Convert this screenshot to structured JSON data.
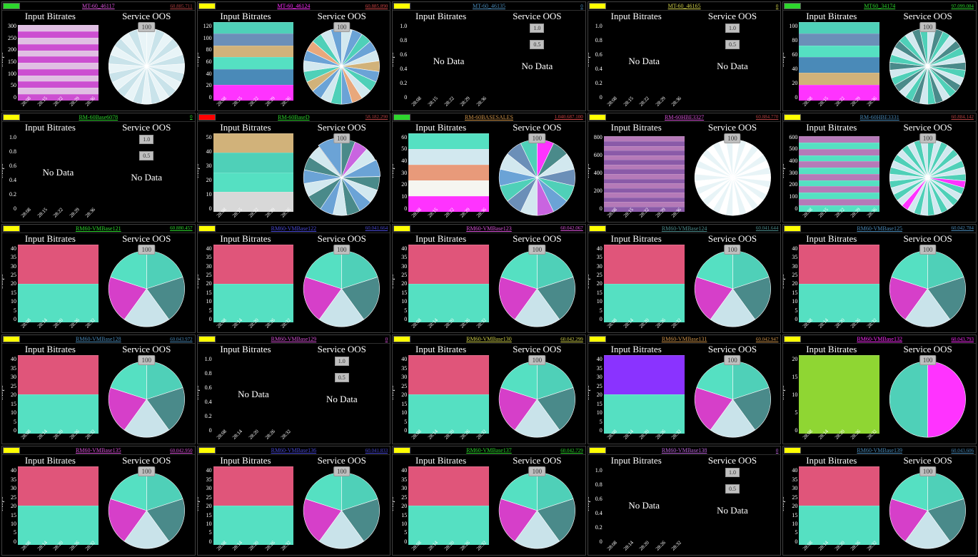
{
  "labels": {
    "input_bitrates": "Input Bitrates",
    "service_oos": "Service OOS",
    "mbps": "Mbps",
    "nodata": "No Data",
    "pie_badge": "100",
    "scale_hi": "1.0",
    "scale_lo": "0.5"
  },
  "status_colors": {
    "green": "#2dd62d",
    "yellow": "#ffff00",
    "red": "#ff0000"
  },
  "x_ticks_default": [
    "28:08",
    "28:15",
    "28:22",
    "28:29",
    "28:36"
  ],
  "x_ticks_alt": [
    "28:08",
    "28:14",
    "28:20",
    "28:26",
    "28:32"
  ],
  "nodata_y_ticks": [
    "1.0",
    "0.8",
    "0.6",
    "0.4",
    "0.2",
    "0"
  ],
  "vm_pie": {
    "slices": [
      20,
      20,
      20,
      20,
      20
    ],
    "colors": [
      "#4fd0b8",
      "#4a8a8a",
      "#c9e3ea",
      "#d63fc9",
      "#55e0c2"
    ]
  },
  "panels": [
    {
      "status": "green",
      "title": "MT-60_46117",
      "title_color": "#d852d8",
      "meta": "60.885.711",
      "meta_color": "#b34141",
      "bitrate": {
        "type": "bars",
        "y_ticks": [
          "300",
          "250",
          "200",
          "150",
          "100",
          "50",
          "0"
        ],
        "bar_colors": [
          "#cc4fd1",
          "#e0bfe3",
          "#cc4fd1",
          "#e0bfe3",
          "#cc4fd1",
          "#e0bfe3",
          "#cc4fd1",
          "#e0bfe3",
          "#cc4fd1",
          "#e0bfe3",
          "#cc4fd1",
          "#e0bfe3"
        ],
        "bar_heights": [
          8,
          8,
          8,
          8,
          8,
          8,
          8,
          8,
          8,
          8,
          8,
          8
        ]
      },
      "oos": {
        "type": "pie",
        "slices": [
          4,
          4,
          4,
          4,
          4,
          4,
          4,
          4,
          4,
          4,
          4,
          4,
          4,
          4,
          4,
          4,
          4,
          4,
          4,
          4,
          4,
          4,
          4,
          4,
          4
        ],
        "colors": [
          "#e8f4f7",
          "#c9e3ea",
          "#e8f4f7",
          "#c9e3ea",
          "#e8f4f7",
          "#c9e3ea",
          "#e8f4f7",
          "#c9e3ea",
          "#e8f4f7",
          "#c9e3ea",
          "#e8f4f7",
          "#c9e3ea",
          "#e8f4f7",
          "#c9e3ea",
          "#e8f4f7",
          "#c9e3ea",
          "#e8f4f7",
          "#c9e3ea",
          "#e8f4f7",
          "#c9e3ea",
          "#e8f4f7",
          "#c9e3ea",
          "#e8f4f7",
          "#c9e3ea",
          "#e8f4f7"
        ]
      }
    },
    {
      "status": "yellow",
      "title": "MT-60_46124",
      "title_color": "#ff2eff",
      "meta": "60.885.890",
      "meta_color": "#d04545",
      "bitrate": {
        "type": "bars",
        "y_ticks": [
          "120",
          "100",
          "80",
          "60",
          "40",
          "20",
          "0"
        ],
        "bar_colors": [
          "#ff33ff",
          "#4a8ab8",
          "#55e0c2",
          "#d1b27a",
          "#6b8fb8",
          "#4fd0b8"
        ],
        "bar_heights": [
          20,
          20,
          15,
          15,
          15,
          15
        ]
      },
      "oos": {
        "type": "pie",
        "slices": [
          6,
          6,
          6,
          6,
          6,
          6,
          6,
          6,
          6,
          6,
          6,
          6,
          6,
          6,
          6,
          6,
          6,
          6,
          6,
          6,
          6,
          6
        ],
        "colors": [
          "#d2e8ef",
          "#6ba3d6",
          "#4fd0b8",
          "#6ba3d6",
          "#d2e8ef",
          "#d1b27a",
          "#6ba3d6",
          "#4fd0b8",
          "#d2e8ef",
          "#e8a87c",
          "#6ba3d6",
          "#4fd0b8",
          "#d2e8ef",
          "#6ba3d6",
          "#d1b27a",
          "#4fd0b8",
          "#d2e8ef",
          "#6ba3d6",
          "#e8a87c",
          "#4fd0b8",
          "#d2e8ef",
          "#6ba3d6"
        ]
      }
    },
    {
      "status": "yellow",
      "title": "MT-60_46135",
      "title_color": "#4a8ab8",
      "meta": "0",
      "meta_color": "#4a8ab8",
      "bitrate": {
        "type": "nodata"
      },
      "oos": {
        "type": "nodata"
      }
    },
    {
      "status": "yellow",
      "title": "MT-60_46165",
      "title_color": "#d1d14a",
      "meta": "0",
      "meta_color": "#d1d14a",
      "bitrate": {
        "type": "nodata"
      },
      "oos": {
        "type": "nodata"
      }
    },
    {
      "status": "green",
      "title": "MT60_34174",
      "title_color": "#2dd62d",
      "meta": "97.099.084",
      "meta_color": "#2dd62d",
      "bitrate": {
        "type": "bars",
        "y_ticks": [
          "100",
          "80",
          "60",
          "40",
          "20",
          "0"
        ],
        "bar_colors": [
          "#ff33ff",
          "#d1b27a",
          "#4a8ab8",
          "#55e0c2",
          "#6b8fb8",
          "#4fd0b8"
        ],
        "bar_heights": [
          20,
          15,
          20,
          15,
          15,
          15
        ]
      },
      "oos": {
        "type": "pie",
        "slices": [
          7,
          7,
          7,
          7,
          7,
          7,
          7,
          7,
          7,
          7,
          7,
          7,
          7,
          7,
          7,
          7,
          7,
          7,
          7,
          7,
          7,
          7,
          7,
          7,
          7,
          7,
          7,
          7,
          7,
          7
        ],
        "colors": [
          "#d2e8ef",
          "#4a8a8a",
          "#4fd0b8",
          "#d2e8ef",
          "#4a8a8a",
          "#4fd0b8",
          "#d2e8ef",
          "#4a8a8a",
          "#4fd0b8",
          "#d2e8ef",
          "#4a8a8a",
          "#4fd0b8",
          "#d2e8ef",
          "#4a8a8a",
          "#4fd0b8",
          "#d2e8ef",
          "#4a8a8a",
          "#4fd0b8",
          "#d2e8ef",
          "#4a8a8a",
          "#4fd0b8",
          "#d2e8ef",
          "#4a8a8a",
          "#4fd0b8",
          "#d2e8ef",
          "#4a8a8a",
          "#4fd0b8",
          "#d2e8ef",
          "#4a8a8a",
          "#4fd0b8"
        ]
      }
    },
    {
      "status": "yellow",
      "title": "RM-60Base6078",
      "title_color": "#2dd62d",
      "meta": "0",
      "meta_color": "#2dd62d",
      "bitrate": {
        "type": "nodata"
      },
      "oos": {
        "type": "nodata"
      }
    },
    {
      "status": "red",
      "title": "RM-60BaseD",
      "title_color": "#2dd62d",
      "meta": "58.182.290",
      "meta_color": "#b34141",
      "bitrate": {
        "type": "bars",
        "y_ticks": [
          "50",
          "40",
          "30",
          "20",
          "10",
          "0"
        ],
        "bar_colors": [
          "#d8d8d8",
          "#55e0c2",
          "#4fd0b8",
          "#d1b27a"
        ],
        "bar_heights": [
          25,
          25,
          25,
          25
        ]
      },
      "oos": {
        "type": "pie",
        "slices": [
          8,
          8,
          8,
          10,
          8,
          8,
          8,
          8,
          8,
          8,
          10,
          8,
          8,
          8,
          8,
          14
        ],
        "colors": [
          "#4a8a8a",
          "#c964e0",
          "#d2e8ef",
          "#6ba3d6",
          "#4a8a8a",
          "#d2e8ef",
          "#6ba3d6",
          "#4a8a8a",
          "#d2e8ef",
          "#6ba3d6",
          "#4a8a8a",
          "#d2e8ef",
          "#6ba3d6",
          "#4a8a8a",
          "#d2e8ef",
          "#6ba3d6"
        ],
        "explode": [
          0,
          0,
          0,
          0.1,
          0,
          0,
          0,
          0,
          0,
          0,
          0,
          0,
          0,
          0,
          0,
          0.2
        ]
      }
    },
    {
      "status": "green",
      "title": "RM-60BASESALES",
      "title_color": "#d1954a",
      "meta": "1.040.687.100",
      "meta_color": "#d04545",
      "bitrate": {
        "type": "bars",
        "y_ticks": [
          "60",
          "50",
          "40",
          "30",
          "20",
          "10",
          "0"
        ],
        "bar_colors": [
          "#ff33ff",
          "#f5f5f0",
          "#e89a7a",
          "#d2e8ef",
          "#55e0c2"
        ],
        "bar_heights": [
          20,
          20,
          20,
          20,
          20
        ]
      },
      "oos": {
        "type": "pie",
        "slices": [
          7,
          7,
          7,
          7,
          7,
          7,
          7,
          7,
          7,
          7,
          7,
          7,
          7,
          7
        ],
        "colors": [
          "#ff33ff",
          "#4a8a8a",
          "#d2e8ef",
          "#6b8fb8",
          "#4fd0b8",
          "#6ba3d6",
          "#c964e0",
          "#d2e8ef",
          "#6b8fb8",
          "#4fd0b8",
          "#6ba3d6",
          "#d2e8ef",
          "#6b8fb8",
          "#4fd0b8"
        ]
      }
    },
    {
      "status": "yellow",
      "title": "RM-60HBE3327",
      "title_color": "#d852d8",
      "meta": "60.884.770",
      "meta_color": "#b34141",
      "bitrate": {
        "type": "bars",
        "y_ticks": [
          "800",
          "600",
          "400",
          "200",
          "0"
        ],
        "bar_colors": [
          "#8a5aa8",
          "#b57ab8",
          "#8a5aa8",
          "#b57ab8",
          "#8a5aa8",
          "#b57ab8",
          "#8a5aa8",
          "#b57ab8",
          "#8a5aa8",
          "#b57ab8",
          "#8a5aa8",
          "#b57ab8",
          "#8a5aa8",
          "#b57ab8",
          "#8a5aa8",
          "#b57ab8"
        ],
        "bar_heights": [
          6,
          6,
          6,
          6,
          6,
          6,
          6,
          6,
          6,
          6,
          6,
          6,
          6,
          6,
          6,
          6
        ]
      },
      "oos": {
        "type": "pie",
        "slices": [
          3,
          3,
          3,
          3,
          3,
          3,
          3,
          3,
          3,
          3,
          3,
          3,
          3,
          3,
          3,
          3,
          3,
          3,
          3,
          3,
          3,
          3,
          3,
          3,
          3,
          3,
          3,
          3,
          3,
          3,
          3,
          3,
          3,
          3
        ],
        "colors": [
          "#ffffff",
          "#e8f4f7",
          "#ffffff",
          "#e8f4f7",
          "#ffffff",
          "#e8f4f7",
          "#ffffff",
          "#e8f4f7",
          "#ffffff",
          "#e8f4f7",
          "#ffffff",
          "#e8f4f7",
          "#ffffff",
          "#e8f4f7",
          "#ffffff",
          "#e8f4f7",
          "#ffffff",
          "#e8f4f7",
          "#ffffff",
          "#e8f4f7",
          "#ffffff",
          "#e8f4f7",
          "#ffffff",
          "#e8f4f7",
          "#ffffff",
          "#e8f4f7",
          "#ffffff",
          "#e8f4f7",
          "#ffffff",
          "#e8f4f7",
          "#ffffff",
          "#e8f4f7",
          "#ffffff",
          "#e8f4f7"
        ]
      }
    },
    {
      "status": "yellow",
      "title": "RM-60HBE3331",
      "title_color": "#4a8ab8",
      "meta": "60.884.142",
      "meta_color": "#b34141",
      "bitrate": {
        "type": "bars",
        "y_ticks": [
          "600",
          "500",
          "400",
          "300",
          "200",
          "100",
          "0"
        ],
        "bar_colors": [
          "#55e0c2",
          "#b57ab8",
          "#55e0c2",
          "#b57ab8",
          "#55e0c2",
          "#b57ab8",
          "#55e0c2",
          "#b57ab8",
          "#55e0c2",
          "#b57ab8",
          "#55e0c2",
          "#b57ab8"
        ],
        "bar_heights": [
          8,
          8,
          8,
          8,
          8,
          8,
          8,
          8,
          8,
          8,
          8,
          8
        ]
      },
      "oos": {
        "type": "pie",
        "slices": [
          3,
          3,
          3,
          3,
          3,
          3,
          3,
          3,
          3,
          3,
          3,
          3,
          3,
          3,
          3,
          3,
          3,
          3,
          3,
          3,
          3,
          3,
          3,
          3,
          3,
          3,
          3,
          3,
          3,
          3,
          3,
          3,
          3,
          3
        ],
        "colors": [
          "#4fd0b8",
          "#d2e8ef",
          "#4fd0b8",
          "#d2e8ef",
          "#4fd0b8",
          "#d2e8ef",
          "#4fd0b8",
          "#d2e8ef",
          "#4fd0b8",
          "#ff33ff",
          "#4fd0b8",
          "#d2e8ef",
          "#4fd0b8",
          "#d2e8ef",
          "#4fd0b8",
          "#d2e8ef",
          "#4fd0b8",
          "#d2e8ef",
          "#4fd0b8",
          "#d2e8ef",
          "#ff33ff",
          "#d2e8ef",
          "#4fd0b8",
          "#d2e8ef",
          "#4fd0b8",
          "#d2e8ef",
          "#4fd0b8",
          "#d2e8ef",
          "#4fd0b8",
          "#d2e8ef",
          "#4fd0b8",
          "#d2e8ef",
          "#4fd0b8",
          "#d2e8ef"
        ]
      }
    },
    {
      "status": "yellow",
      "title": "RM60-VMBase121",
      "title_color": "#2dd62d",
      "meta": "60.880.457",
      "meta_color": "#2dd62d",
      "bitrate": {
        "type": "vm"
      },
      "oos": {
        "type": "vm_pie"
      }
    },
    {
      "status": "yellow",
      "title": "RM60-VMBase122",
      "title_color": "#4a4ad6",
      "meta": "60.041.664",
      "meta_color": "#4a4ad6",
      "bitrate": {
        "type": "vm"
      },
      "oos": {
        "type": "vm_pie"
      }
    },
    {
      "status": "yellow",
      "title": "RM60-VMBase123",
      "title_color": "#d852d8",
      "meta": "60.042.067",
      "meta_color": "#d852d8",
      "bitrate": {
        "type": "vm"
      },
      "oos": {
        "type": "vm_pie"
      }
    },
    {
      "status": "yellow",
      "title": "RM60-VMBase124",
      "title_color": "#4a8a8a",
      "meta": "60.041.644",
      "meta_color": "#4a8a8a",
      "bitrate": {
        "type": "vm"
      },
      "oos": {
        "type": "vm_pie"
      }
    },
    {
      "status": "yellow",
      "title": "RM60-VMBase125",
      "title_color": "#4a8ab8",
      "meta": "60.042.784",
      "meta_color": "#4a8ab8",
      "bitrate": {
        "type": "vm"
      },
      "oos": {
        "type": "vm_pie"
      }
    },
    {
      "status": "yellow",
      "title": "RM60-VMBase128",
      "title_color": "#4a8ab8",
      "meta": "60.043.972",
      "meta_color": "#4a8ab8",
      "bitrate": {
        "type": "vm"
      },
      "oos": {
        "type": "vm_pie"
      }
    },
    {
      "status": "yellow",
      "title": "RM60-VMBase129",
      "title_color": "#d852d8",
      "meta": "0",
      "meta_color": "#d852d8",
      "bitrate": {
        "type": "nodata"
      },
      "oos": {
        "type": "nodata"
      }
    },
    {
      "status": "yellow",
      "title": "RM60-VMBase130",
      "title_color": "#d1d14a",
      "meta": "60.042.299",
      "meta_color": "#d1d14a",
      "bitrate": {
        "type": "vm"
      },
      "oos": {
        "type": "vm_pie"
      }
    },
    {
      "status": "yellow",
      "title": "RM60-VMBase131",
      "title_color": "#d1954a",
      "meta": "60.042.947",
      "meta_color": "#d1954a",
      "bitrate": {
        "type": "bars",
        "y_ticks": [
          "40",
          "35",
          "30",
          "25",
          "20",
          "15",
          "10",
          "5",
          "0"
        ],
        "bar_colors": [
          "#55e0c2",
          "#8a33ff"
        ],
        "bar_heights": [
          50,
          50
        ]
      },
      "oos": {
        "type": "vm_pie"
      }
    },
    {
      "status": "yellow",
      "title": "RM60-VMBase132",
      "title_color": "#ff2eff",
      "meta": "60.043.793",
      "meta_color": "#ff2eff",
      "bitrate": {
        "type": "bars",
        "y_ticks": [
          "20",
          "15",
          "10",
          "5",
          "0"
        ],
        "bar_colors": [
          "#8fd633"
        ],
        "bar_heights": [
          100
        ]
      },
      "oos": {
        "type": "pie",
        "slices": [
          50,
          50
        ],
        "colors": [
          "#ff33ff",
          "#4fd0b8"
        ]
      }
    },
    {
      "status": "yellow",
      "title": "RM60-VMBase135",
      "title_color": "#d852d8",
      "meta": "60.042.950",
      "meta_color": "#d852d8",
      "bitrate": {
        "type": "vm"
      },
      "oos": {
        "type": "vm_pie"
      }
    },
    {
      "status": "yellow",
      "title": "RM60-VMBase136",
      "title_color": "#4a4ad6",
      "meta": "60.041.833",
      "meta_color": "#4a4ad6",
      "bitrate": {
        "type": "vm"
      },
      "oos": {
        "type": "vm_pie"
      }
    },
    {
      "status": "yellow",
      "title": "RM60-VMBase137",
      "title_color": "#2dd62d",
      "meta": "60.042.729",
      "meta_color": "#2dd62d",
      "bitrate": {
        "type": "vm"
      },
      "oos": {
        "type": "vm_pie"
      }
    },
    {
      "status": "yellow",
      "title": "RM60-VMBase138",
      "title_color": "#b864d8",
      "meta": "0",
      "meta_color": "#b864d8",
      "bitrate": {
        "type": "nodata"
      },
      "oos": {
        "type": "nodata"
      }
    },
    {
      "status": "yellow",
      "title": "RM60-VMBase139",
      "title_color": "#4a8ab8",
      "meta": "60.043.606",
      "meta_color": "#4a8ab8",
      "bitrate": {
        "type": "vm"
      },
      "oos": {
        "type": "vm_pie"
      }
    }
  ],
  "vm_bitrate": {
    "y_ticks": [
      "40",
      "35",
      "30",
      "25",
      "20",
      "15",
      "10",
      "5",
      "0"
    ],
    "bar_colors": [
      "#55e0c2",
      "#e0557a"
    ],
    "bar_heights": [
      50,
      50
    ]
  }
}
